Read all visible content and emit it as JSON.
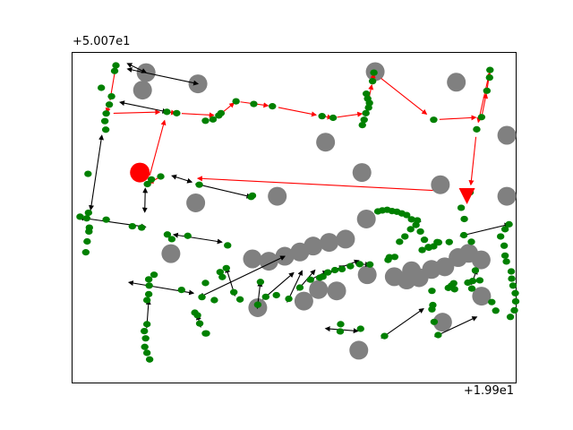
{
  "chart_data": {
    "type": "scatter",
    "title": "",
    "xlabel": "",
    "ylabel": "",
    "x_offset_text": "+1.99e1",
    "y_offset_text": "+5.007e1",
    "xlim": [
      0,
      100
    ],
    "ylim": [
      0,
      100
    ],
    "grid": false,
    "colors": {
      "obstacle": "#808080",
      "node": "#008000",
      "highlight_path": "#ff0000",
      "edge": "#000000",
      "start_marker": "#ff0000",
      "goal_marker": "#ff0000"
    },
    "series": [
      {
        "name": "",
        "kind": "obstacles",
        "points": [
          [
            16.6,
            94
          ],
          [
            15.8,
            88.7
          ],
          [
            28.3,
            90.6
          ],
          [
            68.3,
            94.3
          ],
          [
            86.6,
            91.1
          ],
          [
            57.1,
            72.9
          ],
          [
            65.3,
            63.7
          ],
          [
            46.2,
            56.5
          ],
          [
            27.8,
            54.5
          ],
          [
            83,
            60
          ],
          [
            98,
            75
          ],
          [
            98,
            56.5
          ],
          [
            66.3,
            49.6
          ],
          [
            22.2,
            39.1
          ],
          [
            40.6,
            37.5
          ],
          [
            44.3,
            36.8
          ],
          [
            47.9,
            38.3
          ],
          [
            51.3,
            39.6
          ],
          [
            54.3,
            41.4
          ],
          [
            57.9,
            42.5
          ],
          [
            61.6,
            43.5
          ],
          [
            66.5,
            32.7
          ],
          [
            76.5,
            33.9
          ],
          [
            72.6,
            32.1
          ],
          [
            75.4,
            31.1
          ],
          [
            78.2,
            31.8
          ],
          [
            81,
            34.3
          ],
          [
            84,
            35.1
          ],
          [
            87,
            37.9
          ],
          [
            89.4,
            39.2
          ],
          [
            92.2,
            37.2
          ],
          [
            59.6,
            27.8
          ],
          [
            55.5,
            28.2
          ],
          [
            52.2,
            24.7
          ],
          [
            41.8,
            22.7
          ],
          [
            92.3,
            26.2
          ],
          [
            83.5,
            18.3
          ],
          [
            64.6,
            9.8
          ]
        ]
      },
      {
        "name": "",
        "kind": "roadmap_nodes",
        "points": [
          [
            9.8,
            96.2
          ],
          [
            9.5,
            94.5
          ],
          [
            6.5,
            89.4
          ],
          [
            8.8,
            86.8
          ],
          [
            8.3,
            84.3
          ],
          [
            7.6,
            81.6
          ],
          [
            7.3,
            79.3
          ],
          [
            7.5,
            76.7
          ],
          [
            21.3,
            82.1
          ],
          [
            23.5,
            81.7
          ],
          [
            30,
            79.4
          ],
          [
            31.7,
            79.8
          ],
          [
            33,
            81
          ],
          [
            33.5,
            81.7
          ],
          [
            36.9,
            85.3
          ],
          [
            40.9,
            84.5
          ],
          [
            45.1,
            83.8
          ],
          [
            56.3,
            80.8
          ],
          [
            58.8,
            80.3
          ],
          [
            66.3,
            87.6
          ],
          [
            66.6,
            86.1
          ],
          [
            67,
            84.8
          ],
          [
            66.8,
            83.4
          ],
          [
            66.2,
            81.7
          ],
          [
            65.8,
            79.7
          ],
          [
            65.4,
            78.1
          ],
          [
            68,
            94
          ],
          [
            67.7,
            91.4
          ],
          [
            81.5,
            79.7
          ],
          [
            94.2,
            94.8
          ],
          [
            94.1,
            92.5
          ],
          [
            93.5,
            88.5
          ],
          [
            92.3,
            80.5
          ],
          [
            91.2,
            76.8
          ],
          [
            89.7,
            57.7
          ],
          [
            87.7,
            53
          ],
          [
            88.4,
            49.6
          ],
          [
            19.9,
            62.5
          ],
          [
            17.8,
            61.6
          ],
          [
            16.9,
            60.2
          ],
          [
            28.6,
            60
          ],
          [
            40.3,
            56.3
          ],
          [
            40.6,
            56.7
          ],
          [
            3.5,
            63.3
          ],
          [
            3.6,
            51.5
          ],
          [
            3.8,
            47
          ],
          [
            3.7,
            45.8
          ],
          [
            3,
            39.5
          ],
          [
            3.3,
            42.8
          ],
          [
            1.7,
            50.3
          ],
          [
            3.2,
            49.8
          ],
          [
            7.6,
            49.4
          ],
          [
            13.5,
            47.4
          ],
          [
            15.6,
            47
          ],
          [
            21.4,
            44.9
          ],
          [
            22.4,
            43.5
          ],
          [
            26,
            44.5
          ],
          [
            35,
            41.6
          ],
          [
            42.4,
            30.5
          ],
          [
            46,
            26.5
          ],
          [
            48.8,
            25.4
          ],
          [
            51.3,
            28.8
          ],
          [
            53.7,
            31.2
          ],
          [
            55.8,
            31.8
          ],
          [
            56.5,
            32.1
          ],
          [
            57.6,
            33.4
          ],
          [
            59.2,
            34.1
          ],
          [
            60.8,
            34.4
          ],
          [
            62.7,
            35.3
          ],
          [
            64.8,
            35.9
          ],
          [
            67.1,
            35.8
          ],
          [
            71.2,
            37.2
          ],
          [
            71.5,
            38
          ],
          [
            72.7,
            38.1
          ],
          [
            73.8,
            42.7
          ],
          [
            75,
            44.3
          ],
          [
            76.3,
            46.5
          ],
          [
            77.8,
            49.2
          ],
          [
            68.9,
            51.9
          ],
          [
            69.9,
            52.2
          ],
          [
            71,
            52.4
          ],
          [
            72.1,
            52
          ],
          [
            73.2,
            51.8
          ],
          [
            74.3,
            51.3
          ],
          [
            75.4,
            50.8
          ],
          [
            76.5,
            49.5
          ],
          [
            77.5,
            47.8
          ],
          [
            78.5,
            45.8
          ],
          [
            79.4,
            43.3
          ],
          [
            80.3,
            41.1
          ],
          [
            82.3,
            42.6
          ],
          [
            85,
            42.6
          ],
          [
            88.3,
            44.7
          ],
          [
            78.9,
            40.2
          ],
          [
            80.4,
            40.9
          ],
          [
            81.5,
            41.3
          ],
          [
            82.6,
            42.5
          ],
          [
            90,
            42.7
          ],
          [
            85.5,
            29.4
          ],
          [
            84.8,
            28.7
          ],
          [
            86.2,
            28.3
          ],
          [
            90.1,
            28.5
          ],
          [
            91.9,
            31
          ],
          [
            89.2,
            30.3
          ],
          [
            86,
            30.1
          ],
          [
            81.1,
            27.8
          ],
          [
            81.3,
            23.5
          ],
          [
            81.1,
            22.2
          ],
          [
            81.6,
            18.4
          ],
          [
            90.9,
            34
          ],
          [
            90.3,
            30.8
          ],
          [
            43.6,
            26
          ],
          [
            41.8,
            23.6
          ],
          [
            37.8,
            25.2
          ],
          [
            36.4,
            27.4
          ],
          [
            33.8,
            32
          ],
          [
            33.3,
            33.5
          ],
          [
            34.7,
            34.7
          ],
          [
            30,
            30.2
          ],
          [
            24.6,
            28.1
          ],
          [
            18.4,
            32.7
          ],
          [
            17.2,
            31.3
          ],
          [
            17.3,
            29.4
          ],
          [
            17.2,
            26.8
          ],
          [
            16.8,
            25
          ],
          [
            16.8,
            17.7
          ],
          [
            16.2,
            15.6
          ],
          [
            16.5,
            13.4
          ],
          [
            16.3,
            10.8
          ],
          [
            16.8,
            9
          ],
          [
            17.4,
            7
          ],
          [
            29.2,
            25.9
          ],
          [
            27.6,
            21.2
          ],
          [
            28.2,
            20.4
          ],
          [
            28.7,
            17.9
          ],
          [
            30,
            14.9
          ],
          [
            30.2,
            14.9
          ],
          [
            32,
            25
          ],
          [
            60.5,
            17.7
          ],
          [
            60.4,
            15.5
          ],
          [
            65,
            16.3
          ],
          [
            70.4,
            14.1
          ],
          [
            82.5,
            14.4
          ],
          [
            98.5,
            48
          ],
          [
            97.6,
            46.5
          ],
          [
            96.6,
            44.3
          ],
          [
            97.4,
            41.5
          ],
          [
            97.6,
            38.5
          ],
          [
            97.9,
            36.7
          ],
          [
            99,
            33.7
          ],
          [
            99.1,
            31.5
          ],
          [
            99.4,
            29.4
          ],
          [
            99.9,
            27.1
          ],
          [
            100,
            24.6
          ],
          [
            99.7,
            21.9
          ],
          [
            98.8,
            19.9
          ],
          [
            95.5,
            21.8
          ],
          [
            94.6,
            24.4
          ]
        ]
      }
    ],
    "highlight_path": [
      [
        9.8,
        96.2
      ],
      [
        8.3,
        84.3
      ],
      [
        7.6,
        81.6
      ],
      [
        21.3,
        82.1
      ],
      [
        23.5,
        81.7
      ],
      [
        33,
        81
      ],
      [
        36.9,
        85.3
      ],
      [
        45.1,
        83.8
      ],
      [
        56.3,
        80.8
      ],
      [
        58.8,
        80.3
      ],
      [
        66.2,
        81.7
      ],
      [
        67.7,
        91.4
      ],
      [
        68,
        94
      ],
      [
        81.5,
        79.7
      ],
      [
        92.3,
        80.5
      ],
      [
        93.5,
        88.5
      ],
      [
        94.2,
        94.8
      ],
      [
        91.2,
        76.8
      ],
      [
        89.7,
        57.7
      ],
      [
        19.9,
        62.5
      ],
      [
        16.9,
        60.2
      ],
      [
        21.3,
        82.1
      ]
    ],
    "edges": [
      [
        [
          13.1,
          96.3
        ],
        [
          16.6,
          94
        ]
      ],
      [
        [
          13.2,
          94.9
        ],
        [
          28.3,
          90.6
        ]
      ],
      [
        [
          11.5,
          84.8
        ],
        [
          21.3,
          82.1
        ]
      ],
      [
        [
          6.5,
          73.9
        ],
        [
          4.1,
          52.4
        ]
      ],
      [
        [
          28.6,
          60
        ],
        [
          40.3,
          56.3
        ]
      ],
      [
        [
          23.2,
          62.4
        ],
        [
          26.9,
          60.8
        ]
      ],
      [
        [
          16.4,
          57.8
        ],
        [
          16.3,
          51.7
        ]
      ],
      [
        [
          2.3,
          49.9
        ],
        [
          16.5,
          47.2
        ]
      ],
      [
        [
          23.6,
          44.7
        ],
        [
          33.7,
          42.6
        ]
      ],
      [
        [
          13.5,
          30.2
        ],
        [
          27.3,
          27.1
        ]
      ],
      [
        [
          29.4,
          26.4
        ],
        [
          47.9,
          38.3
        ]
      ],
      [
        [
          43.6,
          26
        ],
        [
          49.9,
          33.3
        ]
      ],
      [
        [
          48.8,
          25.4
        ],
        [
          51.8,
          33.9
        ]
      ],
      [
        [
          51.3,
          28.8
        ],
        [
          54.7,
          34.1
        ]
      ],
      [
        [
          53.7,
          31.2
        ],
        [
          57.5,
          33.8
        ]
      ],
      [
        [
          55.8,
          31.8
        ],
        [
          59.6,
          34.4
        ]
      ],
      [
        [
          56.5,
          32.1
        ],
        [
          61.2,
          35.4
        ]
      ],
      [
        [
          57.6,
          33.4
        ],
        [
          64.6,
          37
        ]
      ],
      [
        [
          64.8,
          35.9
        ],
        [
          67.1,
          35.8
        ]
      ],
      [
        [
          57.9,
          16.3
        ],
        [
          64.4,
          15.6
        ]
      ],
      [
        [
          70.4,
          14.1
        ],
        [
          79.2,
          22.4
        ]
      ],
      [
        [
          82.5,
          14.4
        ],
        [
          91.2,
          19.9
        ]
      ],
      [
        [
          90.3,
          30.8
        ],
        [
          91.2,
          34.2
        ]
      ],
      [
        [
          88.3,
          44.7
        ],
        [
          98.5,
          48
        ]
      ],
      [
        [
          77.8,
          49.2
        ],
        [
          74.3,
          51.3
        ]
      ],
      [
        [
          28.7,
          17.9
        ],
        [
          28.2,
          20.4
        ]
      ],
      [
        [
          16.8,
          17.7
        ],
        [
          17.2,
          25
        ]
      ],
      [
        [
          36.4,
          27.4
        ],
        [
          34.7,
          34.7
        ]
      ],
      [
        [
          41.8,
          23.6
        ],
        [
          42.4,
          30.5
        ]
      ]
    ],
    "start_marker": [
      15.2,
      63.7
    ],
    "goal_marker": [
      89,
      56.8
    ]
  }
}
